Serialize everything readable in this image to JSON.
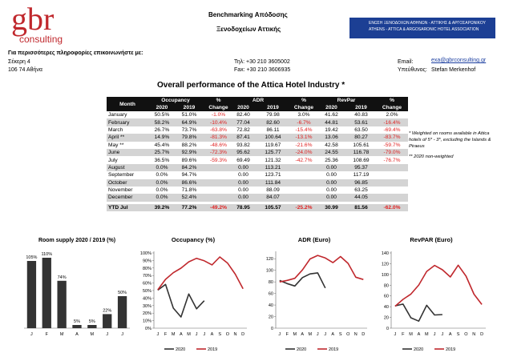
{
  "header": {
    "logo": "gbr",
    "logo_sub": "consulting",
    "title_lines": [
      "Benchmarking Απόδοσης",
      "Ξενοδοχείων Αττικής"
    ],
    "association_lines": [
      "ΕΝΩΣΗ ΞΕΝΟΔΟΧΩΝ ΑΘΗΝΩΝ - ΑΤΤΙΚΗΣ & ΑΡΓΟΣΑΡΩΝΙΚΟΥ",
      "ATHENS - ATTICA & ARGOSARONIC HOTEL ASSOCIATION"
    ]
  },
  "contact": {
    "intro": "Για περισσότερες πληροφορίες επικοινωνήστε με:",
    "address": [
      "Σέκερη 4",
      "106 74 Αθήνα"
    ],
    "phone": "Τηλ: +30 210 3605002",
    "fax": "Fax: +30 210 3606935",
    "email_label": "Email:",
    "email": "exa@gbrconsulting.gr",
    "person_label": "Υπεύθυνος:",
    "person": "Stefan Merkenhof"
  },
  "report_title": "Overall performance of the Attica Hotel Industry *",
  "months": {
    "header": "Month",
    "rows": [
      "January",
      "February",
      "March",
      "April **",
      "May **",
      "June",
      "July",
      "August",
      "September",
      "October",
      "November",
      "December",
      "YTD Jul"
    ]
  },
  "tables": [
    {
      "title": "Occupancy",
      "change_header": [
        "%",
        "Change"
      ],
      "years": [
        "2020",
        "2019"
      ],
      "rows": [
        [
          "50.5%",
          "51.0%",
          "-1.0%"
        ],
        [
          "58.2%",
          "64.9%",
          "-10.4%"
        ],
        [
          "26.7%",
          "73.7%",
          "-63.8%"
        ],
        [
          "14.9%",
          "79.8%",
          "-81.3%"
        ],
        [
          "45.4%",
          "88.2%",
          "-48.6%"
        ],
        [
          "25.7%",
          "92.9%",
          "-72.3%"
        ],
        [
          "36.5%",
          "89.6%",
          "-59.3%"
        ],
        [
          "0.0%",
          "84.2%"
        ],
        [
          "0.0%",
          "94.7%"
        ],
        [
          "0.0%",
          "86.6%"
        ],
        [
          "0.0%",
          "71.8%"
        ],
        [
          "0.0%",
          "52.4%"
        ],
        [
          "39.2%",
          "77.2%",
          "-49.2%"
        ]
      ]
    },
    {
      "title": "ADR",
      "change_header": [
        "%",
        "Change"
      ],
      "years": [
        "2020",
        "2019"
      ],
      "rows": [
        [
          "82.40",
          "79.98",
          "3.0%"
        ],
        [
          "77.04",
          "82.60",
          "-6.7%"
        ],
        [
          "72.82",
          "86.11",
          "-15.4%"
        ],
        [
          "87.41",
          "100.64",
          "-13.1%"
        ],
        [
          "93.82",
          "119.67",
          "-21.6%"
        ],
        [
          "95.62",
          "125.77",
          "-24.0%"
        ],
        [
          "69.49",
          "121.32",
          "-42.7%"
        ],
        [
          "0.00",
          "113.21"
        ],
        [
          "0.00",
          "123.71"
        ],
        [
          "0.00",
          "111.84"
        ],
        [
          "0.00",
          "88.09"
        ],
        [
          "0.00",
          "84.07"
        ],
        [
          "78.95",
          "105.57",
          "-25.2%"
        ]
      ]
    },
    {
      "title": "RevPar",
      "change_header": [
        "%",
        "Change"
      ],
      "years": [
        "2020",
        "2019"
      ],
      "rows": [
        [
          "41.62",
          "40.83",
          "2.0%"
        ],
        [
          "44.81",
          "53.61",
          "-16.4%"
        ],
        [
          "19.42",
          "63.50",
          "-69.4%"
        ],
        [
          "13.06",
          "80.27",
          "-83.7%"
        ],
        [
          "42.58",
          "105.61",
          "-59.7%"
        ],
        [
          "24.55",
          "116.78",
          "-79.0%"
        ],
        [
          "25.36",
          "108.69",
          "-76.7%"
        ],
        [
          "0.00",
          "95.37"
        ],
        [
          "0.00",
          "117.19"
        ],
        [
          "0.00",
          "96.85"
        ],
        [
          "0.00",
          "63.25"
        ],
        [
          "0.00",
          "44.05"
        ],
        [
          "30.99",
          "81.56",
          "-62.0%"
        ]
      ]
    }
  ],
  "notes": [
    "* Weighted on rooms available in Attica hotels of 5* - 3*, excluding the Islands & Piraeus",
    "** 2020 non-weighted"
  ],
  "charts": [
    {
      "type": "bar",
      "title": "Room supply 2020 / 2019 (%)",
      "categories": [
        "J",
        "F",
        "M",
        "A",
        "M",
        "J",
        "J"
      ],
      "values": [
        105,
        110,
        74,
        5,
        5,
        22,
        50
      ],
      "value_labels": [
        "105%",
        "110%",
        "74%",
        "5%",
        "5%",
        "22%",
        "50%"
      ],
      "color": "#333333"
    },
    {
      "type": "line",
      "title": "Occupancy (%)",
      "categories": [
        "J",
        "F",
        "M",
        "A",
        "M",
        "J",
        "J",
        "A",
        "S",
        "O",
        "N",
        "D"
      ],
      "series": [
        {
          "name": "2020",
          "color": "#333333",
          "values": [
            50.5,
            58.2,
            26.7,
            14.9,
            45.4,
            25.7,
            36.5
          ]
        },
        {
          "name": "2019",
          "color": "#c0282d",
          "values": [
            51.0,
            64.9,
            73.7,
            79.8,
            88.2,
            92.9,
            89.6,
            84.2,
            94.7,
            86.6,
            71.8,
            52.4
          ]
        }
      ],
      "ylim": [
        0,
        100
      ],
      "yticks": [
        {
          "value": 0,
          "label": "0%"
        },
        {
          "value": 10,
          "label": "10%"
        },
        {
          "value": 20,
          "label": "20%"
        },
        {
          "value": 30,
          "label": "30%"
        },
        {
          "value": 40,
          "label": "40%"
        },
        {
          "value": 50,
          "label": "50%"
        },
        {
          "value": 60,
          "label": "60%"
        },
        {
          "value": 70,
          "label": "70%"
        },
        {
          "value": 80,
          "label": "80%"
        },
        {
          "value": 90,
          "label": "90%"
        },
        {
          "value": 100,
          "label": "100%"
        }
      ]
    },
    {
      "type": "line",
      "title": "ADR (Euro)",
      "categories": [
        "J",
        "F",
        "M",
        "A",
        "M",
        "J",
        "J",
        "A",
        "S",
        "O",
        "N",
        "D"
      ],
      "series": [
        {
          "name": "2020",
          "color": "#333333",
          "values": [
            82.4,
            77.04,
            72.82,
            87.41,
            93.82,
            95.62,
            69.49
          ]
        },
        {
          "name": "2019",
          "color": "#c0282d",
          "values": [
            79.98,
            82.6,
            86.11,
            100.64,
            119.67,
            125.77,
            121.32,
            113.21,
            123.71,
            111.84,
            88.09,
            84.07
          ]
        }
      ],
      "ylim": [
        0,
        130
      ],
      "yticks": [
        0,
        20,
        40,
        60,
        80,
        100,
        120
      ]
    },
    {
      "type": "line",
      "title": "RevPAR (Euro)",
      "categories": [
        "J",
        "F",
        "M",
        "A",
        "M",
        "J",
        "J",
        "A",
        "S",
        "O",
        "N",
        "D"
      ],
      "series": [
        {
          "name": "2020",
          "color": "#333333",
          "values": [
            41.62,
            44.81,
            19.42,
            13.06,
            42.58,
            24.55,
            25.36
          ]
        },
        {
          "name": "2019",
          "color": "#c0282d",
          "values": [
            40.83,
            53.61,
            63.5,
            80.27,
            105.61,
            116.78,
            108.69,
            95.37,
            117.19,
            96.85,
            63.25,
            44.05
          ]
        }
      ],
      "ylim": [
        0,
        140
      ],
      "yticks": [
        0,
        20,
        40,
        60,
        80,
        100,
        120,
        140
      ]
    }
  ]
}
